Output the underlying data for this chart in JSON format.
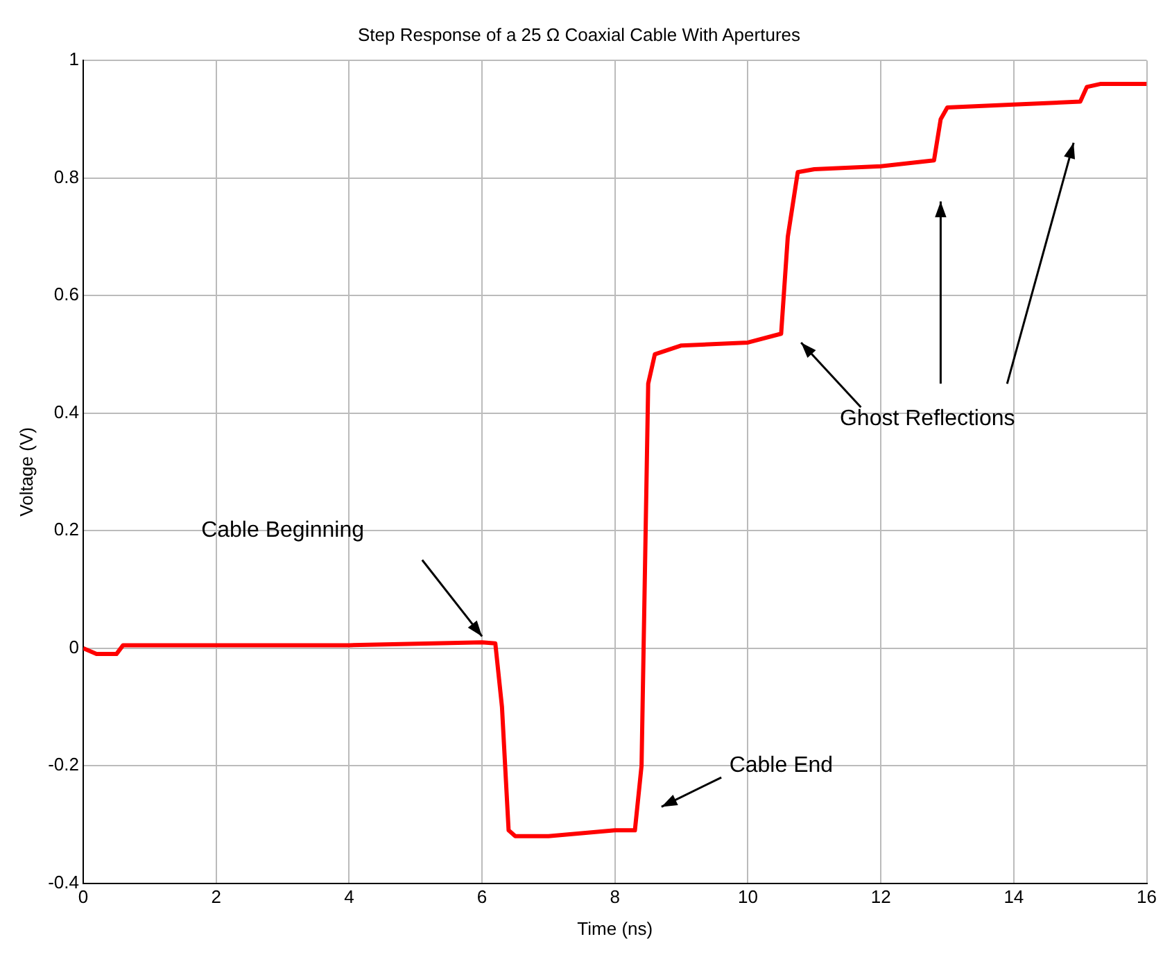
{
  "chart_data": {
    "type": "line",
    "title": "Step Response of a 25 Ω Coaxial Cable With Apertures",
    "xlabel": "Time (ns)",
    "ylabel": "Voltage (V)",
    "x": [
      0,
      0.2,
      0.5,
      0.6,
      2,
      4,
      6,
      6.2,
      6.3,
      6.4,
      6.5,
      7,
      7.5,
      8,
      8.3,
      8.4,
      8.5,
      8.6,
      9,
      10,
      10.5,
      10.6,
      10.75,
      11,
      12,
      12.8,
      12.9,
      13,
      14,
      15,
      15.1,
      15.3,
      16
    ],
    "series": [
      {
        "color": "#ff0000",
        "values": [
          0,
          -0.01,
          -0.01,
          0.005,
          0.005,
          0.005,
          0.01,
          0.008,
          -0.1,
          -0.31,
          -0.32,
          -0.32,
          -0.315,
          -0.31,
          -0.31,
          -0.2,
          0.45,
          0.5,
          0.515,
          0.52,
          0.535,
          0.7,
          0.81,
          0.815,
          0.82,
          0.83,
          0.9,
          0.92,
          0.925,
          0.93,
          0.955,
          0.96,
          0.96
        ]
      }
    ],
    "xlim": [
      0,
      16
    ],
    "xticks": [
      0,
      2,
      4,
      6,
      8,
      10,
      12,
      14,
      16
    ],
    "ylim": [
      -0.4,
      1
    ],
    "yticks": [
      -0.4,
      -0.2,
      0,
      0.2,
      0.4,
      0.6,
      0.8,
      1
    ],
    "grid": true,
    "marker": "none",
    "line_style": "solid",
    "annotations": [
      "Cable Beginning",
      "Cable End",
      "Ghost Reflections"
    ]
  }
}
